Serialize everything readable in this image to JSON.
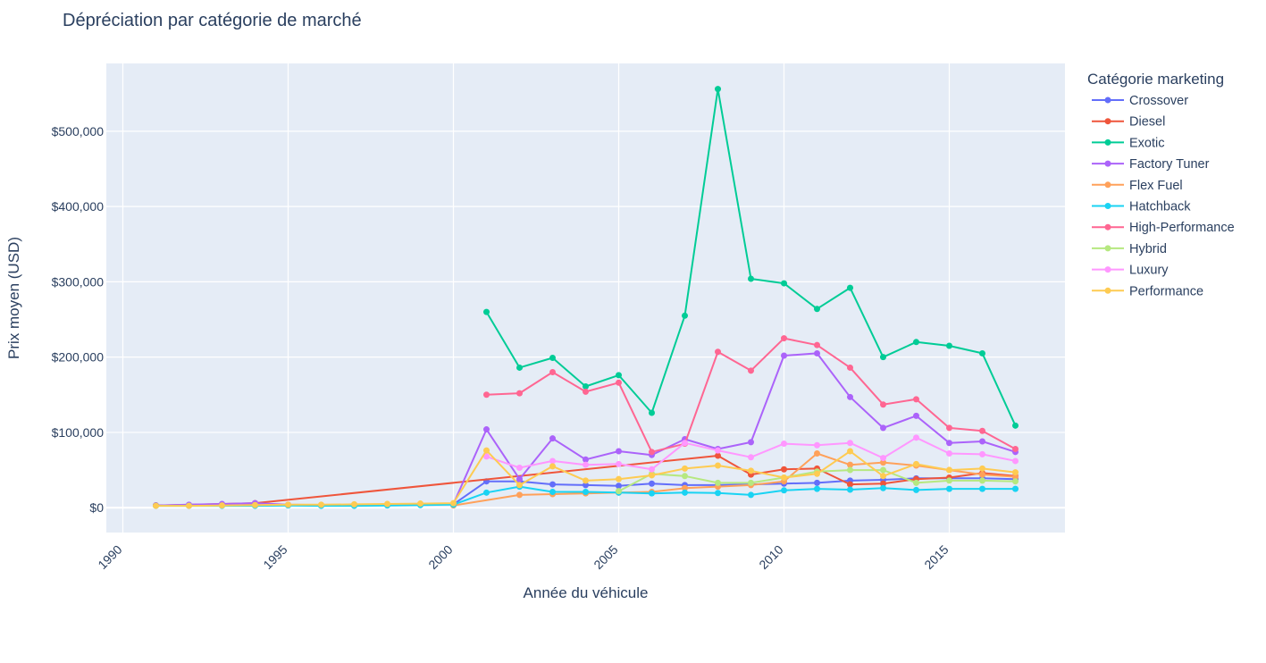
{
  "chart_data": {
    "type": "line",
    "title": "Dépréciation par catégorie de marché",
    "xlabel": "Année du véhicule",
    "ylabel": "Prix moyen (USD)",
    "xlim": [
      1989.5,
      2018.5
    ],
    "ylim": [
      -33000,
      590000
    ],
    "x_ticks": [
      1990,
      1995,
      2000,
      2005,
      2010,
      2015
    ],
    "y_ticks": [
      0,
      100000,
      200000,
      300000,
      400000,
      500000
    ],
    "y_tick_labels": [
      "$0",
      "$100,000",
      "$200,000",
      "$300,000",
      "$400,000",
      "$500,000"
    ],
    "grid": true,
    "legend_title": "Catégorie marketing",
    "legend_position": "right",
    "series": [
      {
        "name": "Crossover",
        "color": "#636efa",
        "x": [
          1991,
          1992,
          1993,
          1994,
          1995,
          1996,
          1997,
          1998,
          1999,
          2000,
          2001,
          2002,
          2003,
          2004,
          2005,
          2006,
          2007,
          2008,
          2009,
          2010,
          2011,
          2012,
          2013,
          2014,
          2015,
          2016,
          2017
        ],
        "y": [
          3000,
          3500,
          4500,
          5000,
          3500,
          3000,
          3000,
          3500,
          4000,
          4500,
          35000,
          35000,
          31000,
          30000,
          29000,
          32000,
          30000,
          30000,
          31000,
          32000,
          33000,
          36000,
          37000,
          39000,
          39000,
          39000,
          38000
        ]
      },
      {
        "name": "Diesel",
        "color": "#ef553b",
        "x": [
          1991,
          1994,
          2008,
          2009,
          2010,
          2011,
          2012,
          2013,
          2014,
          2015,
          2016,
          2017
        ],
        "y": [
          3000,
          6000,
          69000,
          44000,
          51000,
          52000,
          31000,
          32000,
          38000,
          40000,
          46000,
          42000
        ]
      },
      {
        "name": "Exotic",
        "color": "#00cc96",
        "x": [
          2001,
          2002,
          2003,
          2004,
          2005,
          2006,
          2007,
          2008,
          2009,
          2010,
          2011,
          2012,
          2013,
          2014,
          2015,
          2016,
          2017
        ],
        "y": [
          260000,
          186000,
          199000,
          161000,
          176000,
          126000,
          255000,
          556000,
          304000,
          298000,
          264000,
          292000,
          200000,
          220000,
          215000,
          205000,
          109000
        ]
      },
      {
        "name": "Factory Tuner",
        "color": "#ab63fa",
        "x": [
          1991,
          1992,
          1993,
          1994,
          1995,
          1996,
          1997,
          1998,
          1999,
          2000,
          2001,
          2002,
          2003,
          2004,
          2005,
          2006,
          2007,
          2008,
          2009,
          2010,
          2011,
          2012,
          2013,
          2014,
          2015,
          2016,
          2017
        ],
        "y": [
          3000,
          4000,
          5000,
          6000,
          4000,
          3500,
          3500,
          4000,
          4500,
          5000,
          104000,
          38000,
          92000,
          64000,
          75000,
          70000,
          91000,
          78000,
          87000,
          202000,
          205000,
          147000,
          106000,
          122000,
          86000,
          88000,
          74000
        ]
      },
      {
        "name": "Flex Fuel",
        "color": "#ffa15a",
        "x": [
          2000,
          2002,
          2003,
          2004,
          2005,
          2006,
          2007,
          2008,
          2009,
          2010,
          2011,
          2012,
          2013,
          2014,
          2015,
          2016,
          2017
        ],
        "y": [
          3000,
          17000,
          18000,
          19000,
          20000,
          21000,
          26000,
          28000,
          30000,
          35000,
          72000,
          57000,
          60000,
          56000,
          50000,
          44000,
          41000
        ]
      },
      {
        "name": "Hatchback",
        "color": "#19d3f3",
        "x": [
          1991,
          1992,
          1993,
          1994,
          1995,
          1996,
          1997,
          1998,
          1999,
          2000,
          2001,
          2002,
          2003,
          2004,
          2005,
          2006,
          2007,
          2008,
          2009,
          2010,
          2011,
          2012,
          2013,
          2014,
          2015,
          2016,
          2017
        ],
        "y": [
          2500,
          2500,
          2500,
          2500,
          3000,
          2500,
          2500,
          3000,
          3500,
          4000,
          20000,
          28000,
          21000,
          21000,
          20000,
          19000,
          20000,
          19500,
          17000,
          23000,
          25000,
          24000,
          26000,
          23500,
          25000,
          25000,
          25000
        ]
      },
      {
        "name": "High-Performance",
        "color": "#ff6692",
        "x": [
          2001,
          2002,
          2003,
          2004,
          2005,
          2006,
          2007,
          2008,
          2009,
          2010,
          2011,
          2012,
          2013,
          2014,
          2015,
          2016,
          2017
        ],
        "y": [
          150000,
          152000,
          180000,
          154000,
          166000,
          74000,
          85000,
          207000,
          182000,
          225000,
          216000,
          186000,
          137000,
          144000,
          106000,
          102000,
          78000
        ]
      },
      {
        "name": "Hybrid",
        "color": "#b6e880",
        "x": [
          2005,
          2006,
          2007,
          2008,
          2009,
          2010,
          2011,
          2012,
          2013,
          2014,
          2015,
          2016,
          2017
        ],
        "y": [
          22000,
          45000,
          42000,
          33000,
          33000,
          40000,
          48000,
          50000,
          50000,
          33000,
          36000,
          36000,
          35000
        ]
      },
      {
        "name": "Luxury",
        "color": "#ff97ff",
        "x": [
          2001,
          2002,
          2003,
          2004,
          2005,
          2006,
          2007,
          2008,
          2009,
          2010,
          2011,
          2012,
          2013,
          2014,
          2015,
          2016,
          2017
        ],
        "y": [
          68000,
          53000,
          62000,
          57000,
          58000,
          51000,
          86000,
          76000,
          67000,
          85000,
          83000,
          86000,
          66000,
          93000,
          72000,
          71000,
          62000
        ]
      },
      {
        "name": "Performance",
        "color": "#fecb52",
        "x": [
          1991,
          1992,
          1993,
          1994,
          1995,
          1996,
          1997,
          1998,
          1999,
          2000,
          2001,
          2002,
          2003,
          2004,
          2005,
          2006,
          2007,
          2008,
          2009,
          2010,
          2011,
          2012,
          2013,
          2014,
          2015,
          2016,
          2017
        ],
        "y": [
          2500,
          2500,
          3000,
          3500,
          4000,
          4000,
          4500,
          5000,
          5500,
          6000,
          76000,
          30000,
          55000,
          36000,
          38000,
          43000,
          52000,
          56000,
          49000,
          40000,
          45000,
          75000,
          42000,
          58000,
          50000,
          52000,
          47000
        ]
      }
    ]
  }
}
